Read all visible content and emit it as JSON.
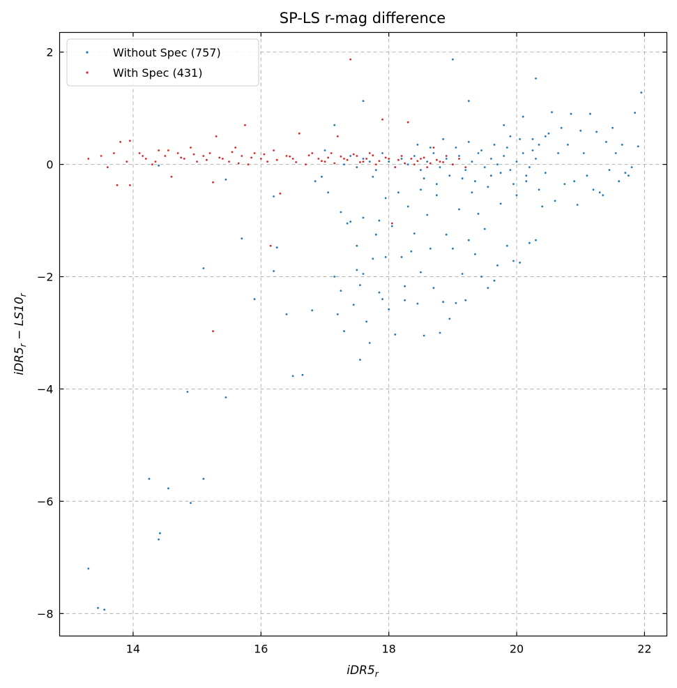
{
  "chart_data": {
    "type": "scatter",
    "title": "SP-LS r-mag difference",
    "xlabel": "iDR5_r",
    "ylabel": "iDR5_r − LS10_r",
    "xlim": [
      12.85,
      22.35
    ],
    "ylim": [
      -8.4,
      2.35
    ],
    "xticks": [
      14,
      16,
      18,
      20,
      22
    ],
    "yticks": [
      2,
      0,
      -2,
      -4,
      -6,
      -8
    ],
    "xtick_labels": [
      "14",
      "16",
      "18",
      "20",
      "22"
    ],
    "ytick_labels": [
      "2",
      "0",
      "−2",
      "−4",
      "−6",
      "−8"
    ],
    "grid": true,
    "legend_position": "top-left",
    "series": [
      {
        "name": "Without Spec (757)",
        "color": "#1f77b4",
        "points": [
          [
            13.3,
            -7.2
          ],
          [
            13.45,
            -7.9
          ],
          [
            13.55,
            -7.93
          ],
          [
            14.25,
            -5.6
          ],
          [
            14.4,
            -6.68
          ],
          [
            14.42,
            -6.57
          ],
          [
            14.55,
            -5.77
          ],
          [
            14.85,
            -4.05
          ],
          [
            14.9,
            -6.03
          ],
          [
            15.1,
            -5.6
          ],
          [
            15.1,
            -1.85
          ],
          [
            15.45,
            -4.15
          ],
          [
            15.45,
            -0.27
          ],
          [
            15.7,
            -1.32
          ],
          [
            15.9,
            -2.4
          ],
          [
            16.2,
            -0.57
          ],
          [
            16.2,
            -1.9
          ],
          [
            16.25,
            -1.48
          ],
          [
            16.4,
            -2.67
          ],
          [
            16.5,
            -3.77
          ],
          [
            16.65,
            -3.75
          ],
          [
            16.8,
            -2.6
          ],
          [
            16.95,
            -0.22
          ],
          [
            17.05,
            -0.5
          ],
          [
            17.15,
            -2.0
          ],
          [
            17.2,
            -2.67
          ],
          [
            17.25,
            -0.85
          ],
          [
            17.25,
            -2.25
          ],
          [
            17.3,
            -2.97
          ],
          [
            17.35,
            -1.05
          ],
          [
            17.4,
            -1.02
          ],
          [
            17.45,
            -2.5
          ],
          [
            17.5,
            -1.45
          ],
          [
            17.5,
            -1.88
          ],
          [
            17.55,
            -2.15
          ],
          [
            17.55,
            -3.48
          ],
          [
            17.6,
            1.13
          ],
          [
            17.6,
            -1.95
          ],
          [
            17.6,
            -0.95
          ],
          [
            17.65,
            -2.8
          ],
          [
            17.7,
            -3.18
          ],
          [
            17.75,
            -1.68
          ],
          [
            17.75,
            -0.22
          ],
          [
            17.8,
            -1.25
          ],
          [
            17.85,
            -1.0
          ],
          [
            17.85,
            -2.28
          ],
          [
            17.9,
            -2.4
          ],
          [
            17.95,
            -0.6
          ],
          [
            17.95,
            -1.65
          ],
          [
            18.0,
            -2.58
          ],
          [
            18.05,
            -1.1
          ],
          [
            18.1,
            -3.03
          ],
          [
            18.15,
            -0.5
          ],
          [
            18.2,
            -1.65
          ],
          [
            18.25,
            -2.42
          ],
          [
            18.25,
            -2.17
          ],
          [
            18.3,
            -0.75
          ],
          [
            18.35,
            -1.55
          ],
          [
            18.4,
            -1.23
          ],
          [
            18.45,
            -2.48
          ],
          [
            18.5,
            -1.92
          ],
          [
            18.5,
            -0.45
          ],
          [
            18.55,
            -3.05
          ],
          [
            18.6,
            -0.9
          ],
          [
            18.65,
            -1.5
          ],
          [
            18.7,
            -2.2
          ],
          [
            18.75,
            -0.55
          ],
          [
            18.8,
            -3.0
          ],
          [
            18.85,
            -2.45
          ],
          [
            18.9,
            -1.25
          ],
          [
            18.95,
            -2.75
          ],
          [
            19.0,
            1.87
          ],
          [
            19.0,
            -1.5
          ],
          [
            19.05,
            -2.47
          ],
          [
            19.1,
            -0.8
          ],
          [
            19.15,
            -1.95
          ],
          [
            19.2,
            -2.42
          ],
          [
            19.25,
            1.13
          ],
          [
            19.25,
            -1.35
          ],
          [
            19.3,
            -0.5
          ],
          [
            19.35,
            -1.6
          ],
          [
            19.4,
            -0.88
          ],
          [
            19.45,
            -2.0
          ],
          [
            19.5,
            -1.15
          ],
          [
            19.55,
            -2.2
          ],
          [
            19.6,
            -0.2
          ],
          [
            19.65,
            -2.07
          ],
          [
            19.7,
            -1.8
          ],
          [
            19.75,
            -0.7
          ],
          [
            19.8,
            0.7
          ],
          [
            19.85,
            -1.45
          ],
          [
            19.9,
            0.5
          ],
          [
            19.95,
            -1.72
          ],
          [
            20.0,
            -0.55
          ],
          [
            20.05,
            -1.75
          ],
          [
            20.1,
            0.85
          ],
          [
            20.15,
            -0.3
          ],
          [
            20.2,
            -1.4
          ],
          [
            20.25,
            0.45
          ],
          [
            20.3,
            1.53
          ],
          [
            20.3,
            -1.35
          ],
          [
            20.35,
            0.35
          ],
          [
            20.4,
            -0.75
          ],
          [
            20.45,
            -0.15
          ],
          [
            20.5,
            0.55
          ],
          [
            20.55,
            0.93
          ],
          [
            20.6,
            -0.65
          ],
          [
            20.65,
            0.2
          ],
          [
            20.7,
            0.65
          ],
          [
            20.75,
            -0.35
          ],
          [
            20.8,
            0.35
          ],
          [
            20.85,
            0.9
          ],
          [
            20.9,
            -0.3
          ],
          [
            20.95,
            -0.72
          ],
          [
            21.0,
            0.6
          ],
          [
            21.05,
            0.2
          ],
          [
            21.1,
            -0.2
          ],
          [
            21.15,
            0.9
          ],
          [
            21.2,
            -0.45
          ],
          [
            21.25,
            0.58
          ],
          [
            21.3,
            -0.5
          ],
          [
            21.35,
            -0.55
          ],
          [
            21.4,
            0.4
          ],
          [
            21.45,
            -0.1
          ],
          [
            21.5,
            0.65
          ],
          [
            21.55,
            0.2
          ],
          [
            21.6,
            -0.3
          ],
          [
            21.65,
            0.35
          ],
          [
            21.7,
            -0.15
          ],
          [
            21.75,
            -0.2
          ],
          [
            21.8,
            -0.05
          ],
          [
            21.85,
            0.92
          ],
          [
            21.9,
            0.32
          ],
          [
            21.95,
            1.28
          ],
          [
            17.3,
            0.0
          ],
          [
            17.4,
            0.15
          ],
          [
            17.5,
            -0.05
          ],
          [
            17.6,
            0.1
          ],
          [
            17.7,
            0.05
          ],
          [
            17.8,
            -0.1
          ],
          [
            17.9,
            0.2
          ],
          [
            18.0,
            0.05
          ],
          [
            18.1,
            -0.05
          ],
          [
            18.2,
            0.1
          ],
          [
            18.3,
            0.0
          ],
          [
            18.4,
            0.15
          ],
          [
            18.5,
            -0.1
          ],
          [
            18.6,
            0.05
          ],
          [
            18.7,
            0.2
          ],
          [
            18.8,
            -0.05
          ],
          [
            18.9,
            0.1
          ],
          [
            19.0,
            0.0
          ],
          [
            19.1,
            0.15
          ],
          [
            19.2,
            -0.1
          ],
          [
            19.3,
            0.05
          ],
          [
            19.4,
            0.2
          ],
          [
            19.5,
            -0.05
          ],
          [
            19.6,
            0.1
          ],
          [
            19.7,
            0.0
          ],
          [
            19.8,
            0.15
          ],
          [
            19.9,
            -0.1
          ],
          [
            20.0,
            0.05
          ],
          [
            20.1,
            0.2
          ],
          [
            20.2,
            -0.05
          ],
          [
            20.3,
            0.1
          ],
          [
            19.05,
            0.3
          ],
          [
            19.15,
            -0.25
          ],
          [
            19.25,
            0.4
          ],
          [
            19.35,
            -0.3
          ],
          [
            19.45,
            0.25
          ],
          [
            19.55,
            -0.4
          ],
          [
            19.65,
            0.35
          ],
          [
            19.75,
            -0.15
          ],
          [
            19.85,
            0.3
          ],
          [
            19.95,
            -0.35
          ],
          [
            20.05,
            0.45
          ],
          [
            20.15,
            -0.2
          ],
          [
            20.25,
            0.25
          ],
          [
            20.35,
            -0.45
          ],
          [
            20.45,
            0.5
          ],
          [
            18.45,
            0.35
          ],
          [
            18.55,
            -0.25
          ],
          [
            18.65,
            0.3
          ],
          [
            18.75,
            -0.35
          ],
          [
            18.85,
            0.45
          ],
          [
            18.95,
            -0.2
          ],
          [
            17.15,
            0.7
          ],
          [
            17.0,
            0.25
          ],
          [
            16.85,
            -0.3
          ],
          [
            14.4,
            -0.02
          ]
        ]
      },
      {
        "name": "With Spec (431)",
        "color": "#d62728",
        "points": [
          [
            13.3,
            0.1
          ],
          [
            13.5,
            0.15
          ],
          [
            13.6,
            -0.05
          ],
          [
            13.7,
            0.2
          ],
          [
            13.75,
            -0.37
          ],
          [
            13.8,
            0.4
          ],
          [
            13.9,
            0.05
          ],
          [
            13.95,
            -0.37
          ],
          [
            13.95,
            0.42
          ],
          [
            14.1,
            0.2
          ],
          [
            14.2,
            0.1
          ],
          [
            14.3,
            0.0
          ],
          [
            14.4,
            0.25
          ],
          [
            14.5,
            0.15
          ],
          [
            14.6,
            -0.22
          ],
          [
            14.7,
            0.2
          ],
          [
            14.8,
            0.1
          ],
          [
            14.9,
            0.3
          ],
          [
            15.0,
            0.05
          ],
          [
            15.1,
            0.15
          ],
          [
            15.2,
            0.2
          ],
          [
            15.25,
            -0.32
          ],
          [
            15.3,
            0.5
          ],
          [
            15.4,
            0.1
          ],
          [
            15.5,
            0.05
          ],
          [
            15.6,
            0.3
          ],
          [
            15.7,
            0.15
          ],
          [
            15.75,
            0.7
          ],
          [
            15.8,
            0.0
          ],
          [
            15.9,
            0.2
          ],
          [
            16.0,
            0.1
          ],
          [
            16.1,
            0.05
          ],
          [
            16.15,
            -1.45
          ],
          [
            16.2,
            0.25
          ],
          [
            16.3,
            -0.52
          ],
          [
            16.4,
            0.15
          ],
          [
            16.5,
            0.1
          ],
          [
            16.6,
            0.55
          ],
          [
            16.7,
            0.0
          ],
          [
            16.8,
            0.2
          ],
          [
            16.9,
            0.1
          ],
          [
            17.0,
            0.05
          ],
          [
            17.1,
            0.2
          ],
          [
            17.2,
            0.5
          ],
          [
            17.3,
            0.1
          ],
          [
            17.4,
            1.87
          ],
          [
            17.5,
            0.15
          ],
          [
            17.6,
            0.05
          ],
          [
            17.7,
            0.2
          ],
          [
            17.8,
            0.0
          ],
          [
            17.9,
            0.8
          ],
          [
            18.0,
            0.1
          ],
          [
            18.1,
            -0.05
          ],
          [
            18.2,
            0.15
          ],
          [
            18.3,
            0.75
          ],
          [
            18.4,
            0.0
          ],
          [
            18.5,
            0.1
          ],
          [
            18.6,
            -0.05
          ],
          [
            18.7,
            0.3
          ],
          [
            18.8,
            0.05
          ],
          [
            18.9,
            0.15
          ],
          [
            19.0,
            0.0
          ],
          [
            19.1,
            0.1
          ],
          [
            19.2,
            -0.05
          ],
          [
            15.25,
            -2.97
          ],
          [
            18.05,
            -1.05
          ],
          [
            14.15,
            0.15
          ],
          [
            14.35,
            0.05
          ],
          [
            14.55,
            0.25
          ],
          [
            14.75,
            0.12
          ],
          [
            14.95,
            0.18
          ],
          [
            15.15,
            0.08
          ],
          [
            15.35,
            0.12
          ],
          [
            15.55,
            0.22
          ],
          [
            15.65,
            0.02
          ],
          [
            15.85,
            0.12
          ],
          [
            16.05,
            0.18
          ],
          [
            16.25,
            0.08
          ],
          [
            16.45,
            0.14
          ],
          [
            16.55,
            0.04
          ],
          [
            16.75,
            0.16
          ],
          [
            16.95,
            0.06
          ],
          [
            17.05,
            0.12
          ],
          [
            17.15,
            0.02
          ],
          [
            17.25,
            0.14
          ],
          [
            17.35,
            0.08
          ],
          [
            17.45,
            0.18
          ],
          [
            17.55,
            0.04
          ],
          [
            17.65,
            0.1
          ],
          [
            17.75,
            0.16
          ],
          [
            17.85,
            0.06
          ],
          [
            17.95,
            0.12
          ],
          [
            18.15,
            0.08
          ],
          [
            18.25,
            0.02
          ],
          [
            18.35,
            0.1
          ],
          [
            18.45,
            0.06
          ],
          [
            18.55,
            0.12
          ],
          [
            18.65,
            0.02
          ],
          [
            18.75,
            0.08
          ],
          [
            18.85,
            0.04
          ]
        ]
      }
    ]
  }
}
